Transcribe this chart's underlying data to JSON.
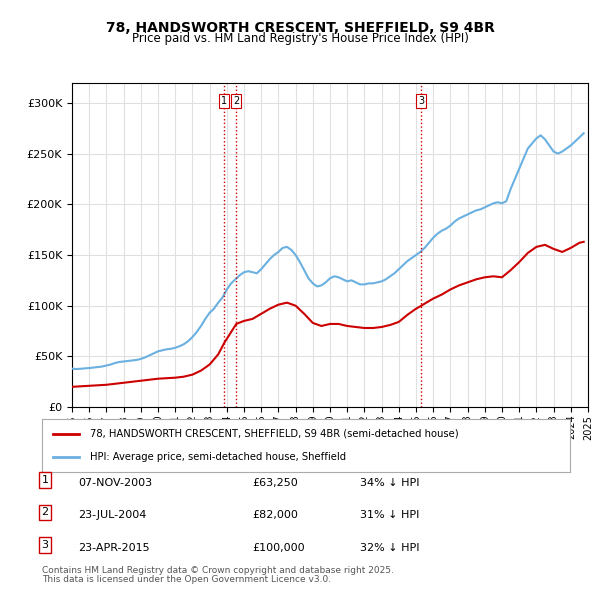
{
  "title_line1": "78, HANDSWORTH CRESCENT, SHEFFIELD, S9 4BR",
  "title_line2": "Price paid vs. HM Land Registry's House Price Index (HPI)",
  "ylabel": "",
  "background_color": "#ffffff",
  "grid_color": "#e0e0e0",
  "hpi_color": "#6ab0e0",
  "price_color": "#cc0000",
  "ylim": [
    0,
    320000
  ],
  "yticks": [
    0,
    50000,
    100000,
    150000,
    200000,
    250000,
    300000
  ],
  "ytick_labels": [
    "£0",
    "£50K",
    "£100K",
    "£150K",
    "£200K",
    "£250K",
    "£300K"
  ],
  "legend_line1": "78, HANDSWORTH CRESCENT, SHEFFIELD, S9 4BR (semi-detached house)",
  "legend_line2": "HPI: Average price, semi-detached house, Sheffield",
  "footer_line1": "Contains HM Land Registry data © Crown copyright and database right 2025.",
  "footer_line2": "This data is licensed under the Open Government Licence v3.0.",
  "transactions": [
    {
      "num": 1,
      "date": "07-NOV-2003",
      "price": 63250,
      "hpi_diff": "34% ↓ HPI",
      "x_year": 2003.85
    },
    {
      "num": 2,
      "date": "23-JUL-2004",
      "price": 82000,
      "hpi_diff": "31% ↓ HPI",
      "x_year": 2004.55
    },
    {
      "num": 3,
      "date": "23-APR-2015",
      "price": 100000,
      "hpi_diff": "32% ↓ HPI",
      "x_year": 2015.31
    }
  ],
  "hpi_data": {
    "years": [
      1995.0,
      1995.25,
      1995.5,
      1995.75,
      1996.0,
      1996.25,
      1996.5,
      1996.75,
      1997.0,
      1997.25,
      1997.5,
      1997.75,
      1998.0,
      1998.25,
      1998.5,
      1998.75,
      1999.0,
      1999.25,
      1999.5,
      1999.75,
      2000.0,
      2000.25,
      2000.5,
      2000.75,
      2001.0,
      2001.25,
      2001.5,
      2001.75,
      2002.0,
      2002.25,
      2002.5,
      2002.75,
      2003.0,
      2003.25,
      2003.5,
      2003.75,
      2004.0,
      2004.25,
      2004.5,
      2004.75,
      2005.0,
      2005.25,
      2005.5,
      2005.75,
      2006.0,
      2006.25,
      2006.5,
      2006.75,
      2007.0,
      2007.25,
      2007.5,
      2007.75,
      2008.0,
      2008.25,
      2008.5,
      2008.75,
      2009.0,
      2009.25,
      2009.5,
      2009.75,
      2010.0,
      2010.25,
      2010.5,
      2010.75,
      2011.0,
      2011.25,
      2011.5,
      2011.75,
      2012.0,
      2012.25,
      2012.5,
      2012.75,
      2013.0,
      2013.25,
      2013.5,
      2013.75,
      2014.0,
      2014.25,
      2014.5,
      2014.75,
      2015.0,
      2015.25,
      2015.5,
      2015.75,
      2016.0,
      2016.25,
      2016.5,
      2016.75,
      2017.0,
      2017.25,
      2017.5,
      2017.75,
      2018.0,
      2018.25,
      2018.5,
      2018.75,
      2019.0,
      2019.25,
      2019.5,
      2019.75,
      2020.0,
      2020.25,
      2020.5,
      2020.75,
      2021.0,
      2021.25,
      2021.5,
      2021.75,
      2022.0,
      2022.25,
      2022.5,
      2022.75,
      2023.0,
      2023.25,
      2023.5,
      2023.75,
      2024.0,
      2024.25,
      2024.5,
      2024.75
    ],
    "values": [
      38000,
      37500,
      37800,
      38200,
      38500,
      39000,
      39500,
      40000,
      41000,
      42000,
      43500,
      44500,
      45000,
      45500,
      46000,
      46500,
      47500,
      49000,
      51000,
      53000,
      55000,
      56000,
      57000,
      57500,
      58500,
      60000,
      62000,
      65000,
      69000,
      74000,
      80000,
      87000,
      93000,
      97000,
      103000,
      108000,
      116000,
      122000,
      126000,
      130000,
      133000,
      134000,
      133000,
      132000,
      136000,
      141000,
      146000,
      150000,
      153000,
      157000,
      158000,
      155000,
      150000,
      143000,
      135000,
      127000,
      122000,
      119000,
      120000,
      123000,
      127000,
      129000,
      128000,
      126000,
      124000,
      125000,
      123000,
      121000,
      121000,
      122000,
      122000,
      123000,
      124000,
      126000,
      129000,
      132000,
      136000,
      140000,
      144000,
      147000,
      150000,
      153000,
      157000,
      162000,
      167000,
      171000,
      174000,
      176000,
      179000,
      183000,
      186000,
      188000,
      190000,
      192000,
      194000,
      195000,
      197000,
      199000,
      201000,
      202000,
      201000,
      203000,
      215000,
      225000,
      235000,
      245000,
      255000,
      260000,
      265000,
      268000,
      264000,
      258000,
      252000,
      250000,
      252000,
      255000,
      258000,
      262000,
      266000,
      270000
    ]
  },
  "price_data": {
    "years": [
      1995.0,
      1995.5,
      1996.0,
      1996.5,
      1997.0,
      1997.5,
      1998.0,
      1998.5,
      1999.0,
      1999.5,
      2000.0,
      2000.5,
      2001.0,
      2001.5,
      2002.0,
      2002.5,
      2003.0,
      2003.5,
      2003.85,
      2004.55,
      2005.0,
      2005.5,
      2006.0,
      2006.5,
      2007.0,
      2007.5,
      2008.0,
      2008.5,
      2009.0,
      2009.5,
      2010.0,
      2010.5,
      2011.0,
      2011.5,
      2012.0,
      2012.5,
      2013.0,
      2013.5,
      2014.0,
      2014.5,
      2015.0,
      2015.31,
      2015.5,
      2016.0,
      2016.5,
      2017.0,
      2017.5,
      2018.0,
      2018.5,
      2019.0,
      2019.5,
      2020.0,
      2020.5,
      2021.0,
      2021.5,
      2022.0,
      2022.5,
      2023.0,
      2023.5,
      2024.0,
      2024.5,
      2024.75
    ],
    "values": [
      20000,
      20500,
      21000,
      21500,
      22000,
      23000,
      24000,
      25000,
      26000,
      27000,
      28000,
      28500,
      29000,
      30000,
      32000,
      36000,
      42000,
      52000,
      63250,
      82000,
      85000,
      87000,
      92000,
      97000,
      101000,
      103000,
      100000,
      92000,
      83000,
      80000,
      82000,
      82000,
      80000,
      79000,
      78000,
      78000,
      79000,
      81000,
      84000,
      91000,
      97000,
      100000,
      102000,
      107000,
      111000,
      116000,
      120000,
      123000,
      126000,
      128000,
      129000,
      128000,
      135000,
      143000,
      152000,
      158000,
      160000,
      156000,
      153000,
      157000,
      162000,
      163000
    ]
  },
  "vline_years": [
    2003.85,
    2004.55,
    2015.31
  ],
  "vline_labels": [
    "1",
    "2",
    "3"
  ],
  "xmin": 1995,
  "xmax": 2025
}
